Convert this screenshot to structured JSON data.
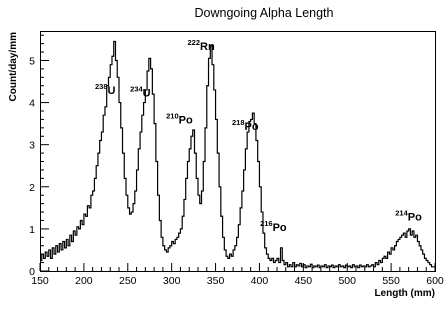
{
  "chart_data": {
    "type": "line",
    "title": "Downgoing Alpha Length",
    "xlabel": "Length (mm)",
    "ylabel": "Count/day/mm",
    "xlim": [
      150,
      600
    ],
    "ylim": [
      0,
      5.7
    ],
    "x_ticks": [
      150,
      200,
      250,
      300,
      350,
      400,
      450,
      500,
      550,
      600
    ],
    "y_ticks": [
      0,
      1,
      2,
      3,
      4,
      5
    ],
    "grid": false,
    "annotations": [
      {
        "id": "u238",
        "sup": "238",
        "text": "U",
        "x": 236,
        "y": 4.2
      },
      {
        "id": "u234",
        "sup": "234",
        "text": "U",
        "x": 276,
        "y": 4.15
      },
      {
        "id": "po210",
        "sup": "210",
        "text": "Po",
        "x": 324,
        "y": 3.5
      },
      {
        "id": "rn222",
        "sup": "222",
        "text": "Rn",
        "x": 349,
        "y": 5.25
      },
      {
        "id": "po218",
        "sup": "218",
        "text": "Po",
        "x": 399,
        "y": 3.35
      },
      {
        "id": "po216",
        "sup": "216",
        "text": "Po",
        "x": 431,
        "y": 0.95
      },
      {
        "id": "po214",
        "sup": "214",
        "text": "Po",
        "x": 585,
        "y": 1.2
      }
    ],
    "series": [
      {
        "points": [
          [
            150,
            0.25
          ],
          [
            152,
            0.4
          ],
          [
            154,
            0.3
          ],
          [
            156,
            0.45
          ],
          [
            158,
            0.35
          ],
          [
            160,
            0.5
          ],
          [
            162,
            0.3
          ],
          [
            164,
            0.55
          ],
          [
            166,
            0.4
          ],
          [
            168,
            0.6
          ],
          [
            170,
            0.45
          ],
          [
            172,
            0.65
          ],
          [
            174,
            0.5
          ],
          [
            176,
            0.7
          ],
          [
            178,
            0.55
          ],
          [
            180,
            0.75
          ],
          [
            182,
            0.6
          ],
          [
            184,
            0.85
          ],
          [
            186,
            0.7
          ],
          [
            188,
            0.95
          ],
          [
            190,
            0.85
          ],
          [
            192,
            1.05
          ],
          [
            194,
            1.0
          ],
          [
            196,
            1.2
          ],
          [
            198,
            1.1
          ],
          [
            200,
            1.35
          ],
          [
            202,
            1.3
          ],
          [
            204,
            1.55
          ],
          [
            206,
            1.5
          ],
          [
            208,
            1.8
          ],
          [
            210,
            1.9
          ],
          [
            212,
            2.2
          ],
          [
            214,
            2.5
          ],
          [
            216,
            2.8
          ],
          [
            218,
            3.1
          ],
          [
            220,
            3.3
          ],
          [
            222,
            3.7
          ],
          [
            224,
            3.9
          ],
          [
            226,
            4.4
          ],
          [
            228,
            4.6
          ],
          [
            230,
            4.9
          ],
          [
            232,
            5.1
          ],
          [
            234,
            5.45
          ],
          [
            236,
            5.0
          ],
          [
            238,
            4.6
          ],
          [
            240,
            4.0
          ],
          [
            242,
            3.4
          ],
          [
            244,
            2.8
          ],
          [
            246,
            2.2
          ],
          [
            248,
            1.8
          ],
          [
            250,
            1.5
          ],
          [
            252,
            1.35
          ],
          [
            254,
            1.4
          ],
          [
            256,
            1.6
          ],
          [
            258,
            1.9
          ],
          [
            260,
            2.4
          ],
          [
            262,
            2.9
          ],
          [
            264,
            3.3
          ],
          [
            266,
            3.7
          ],
          [
            268,
            4.0
          ],
          [
            270,
            4.3
          ],
          [
            272,
            4.75
          ],
          [
            274,
            5.05
          ],
          [
            276,
            4.8
          ],
          [
            278,
            4.2
          ],
          [
            280,
            3.5
          ],
          [
            282,
            2.6
          ],
          [
            284,
            1.8
          ],
          [
            286,
            1.2
          ],
          [
            288,
            0.8
          ],
          [
            290,
            0.6
          ],
          [
            292,
            0.5
          ],
          [
            294,
            0.45
          ],
          [
            296,
            0.55
          ],
          [
            298,
            0.6
          ],
          [
            300,
            0.7
          ],
          [
            302,
            0.65
          ],
          [
            304,
            0.75
          ],
          [
            306,
            0.8
          ],
          [
            308,
            0.9
          ],
          [
            310,
            1.0
          ],
          [
            312,
            1.3
          ],
          [
            314,
            1.7
          ],
          [
            316,
            2.2
          ],
          [
            318,
            2.6
          ],
          [
            320,
            2.9
          ],
          [
            322,
            3.2
          ],
          [
            324,
            3.35
          ],
          [
            326,
            2.8
          ],
          [
            328,
            2.2
          ],
          [
            330,
            1.8
          ],
          [
            332,
            1.6
          ],
          [
            334,
            1.9
          ],
          [
            336,
            2.6
          ],
          [
            338,
            3.4
          ],
          [
            340,
            4.4
          ],
          [
            342,
            5.05
          ],
          [
            344,
            5.35
          ],
          [
            346,
            4.9
          ],
          [
            348,
            4.3
          ],
          [
            350,
            3.6
          ],
          [
            352,
            2.8
          ],
          [
            354,
            2.0
          ],
          [
            356,
            1.3
          ],
          [
            358,
            0.8
          ],
          [
            360,
            0.5
          ],
          [
            362,
            0.35
          ],
          [
            364,
            0.3
          ],
          [
            366,
            0.4
          ],
          [
            368,
            0.35
          ],
          [
            370,
            0.5
          ],
          [
            372,
            0.6
          ],
          [
            374,
            0.8
          ],
          [
            376,
            1.1
          ],
          [
            378,
            1.5
          ],
          [
            380,
            1.9
          ],
          [
            382,
            2.4
          ],
          [
            384,
            2.9
          ],
          [
            386,
            3.3
          ],
          [
            388,
            3.55
          ],
          [
            390,
            3.6
          ],
          [
            392,
            3.75
          ],
          [
            394,
            3.5
          ],
          [
            396,
            3.1
          ],
          [
            398,
            2.6
          ],
          [
            400,
            2.0
          ],
          [
            402,
            1.4
          ],
          [
            404,
            0.9
          ],
          [
            406,
            0.55
          ],
          [
            408,
            0.4
          ],
          [
            410,
            0.3
          ],
          [
            412,
            0.25
          ],
          [
            414,
            0.3
          ],
          [
            416,
            0.2
          ],
          [
            418,
            0.25
          ],
          [
            420,
            0.3
          ],
          [
            422,
            0.2
          ],
          [
            424,
            0.55
          ],
          [
            426,
            0.25
          ],
          [
            428,
            0.15
          ],
          [
            430,
            0.2
          ],
          [
            432,
            0.1
          ],
          [
            434,
            0.15
          ],
          [
            436,
            0.1
          ],
          [
            438,
            0.2
          ],
          [
            440,
            0.1
          ],
          [
            442,
            0.15
          ],
          [
            444,
            0.12
          ],
          [
            446,
            0.18
          ],
          [
            448,
            0.1
          ],
          [
            450,
            0.15
          ],
          [
            452,
            0.08
          ],
          [
            454,
            0.12
          ],
          [
            456,
            0.1
          ],
          [
            458,
            0.16
          ],
          [
            460,
            0.08
          ],
          [
            462,
            0.12
          ],
          [
            464,
            0.1
          ],
          [
            466,
            0.14
          ],
          [
            468,
            0.08
          ],
          [
            470,
            0.12
          ],
          [
            472,
            0.1
          ],
          [
            474,
            0.15
          ],
          [
            476,
            0.08
          ],
          [
            478,
            0.12
          ],
          [
            480,
            0.1
          ],
          [
            482,
            0.14
          ],
          [
            484,
            0.08
          ],
          [
            486,
            0.12
          ],
          [
            488,
            0.1
          ],
          [
            490,
            0.15
          ],
          [
            492,
            0.1
          ],
          [
            494,
            0.12
          ],
          [
            496,
            0.08
          ],
          [
            498,
            0.14
          ],
          [
            500,
            0.1
          ],
          [
            502,
            0.12
          ],
          [
            504,
            0.08
          ],
          [
            506,
            0.15
          ],
          [
            508,
            0.1
          ],
          [
            510,
            0.12
          ],
          [
            512,
            0.08
          ],
          [
            514,
            0.14
          ],
          [
            516,
            0.1
          ],
          [
            518,
            0.12
          ],
          [
            520,
            0.1
          ],
          [
            522,
            0.15
          ],
          [
            524,
            0.1
          ],
          [
            526,
            0.12
          ],
          [
            528,
            0.15
          ],
          [
            530,
            0.1
          ],
          [
            532,
            0.2
          ],
          [
            534,
            0.15
          ],
          [
            536,
            0.25
          ],
          [
            538,
            0.2
          ],
          [
            540,
            0.3
          ],
          [
            542,
            0.35
          ],
          [
            544,
            0.3
          ],
          [
            546,
            0.45
          ],
          [
            548,
            0.4
          ],
          [
            550,
            0.55
          ],
          [
            552,
            0.5
          ],
          [
            554,
            0.6
          ],
          [
            556,
            0.7
          ],
          [
            558,
            0.75
          ],
          [
            560,
            0.8
          ],
          [
            562,
            0.85
          ],
          [
            564,
            0.9
          ],
          [
            566,
            0.8
          ],
          [
            568,
            0.95
          ],
          [
            570,
            1.0
          ],
          [
            572,
            0.85
          ],
          [
            574,
            0.95
          ],
          [
            576,
            0.8
          ],
          [
            578,
            0.85
          ],
          [
            580,
            0.7
          ],
          [
            582,
            0.6
          ],
          [
            584,
            0.5
          ],
          [
            586,
            0.4
          ],
          [
            588,
            0.3
          ],
          [
            590,
            0.25
          ],
          [
            592,
            0.2
          ],
          [
            594,
            0.15
          ],
          [
            596,
            0.1
          ],
          [
            598,
            0.1
          ],
          [
            600,
            0.1
          ]
        ]
      }
    ]
  }
}
